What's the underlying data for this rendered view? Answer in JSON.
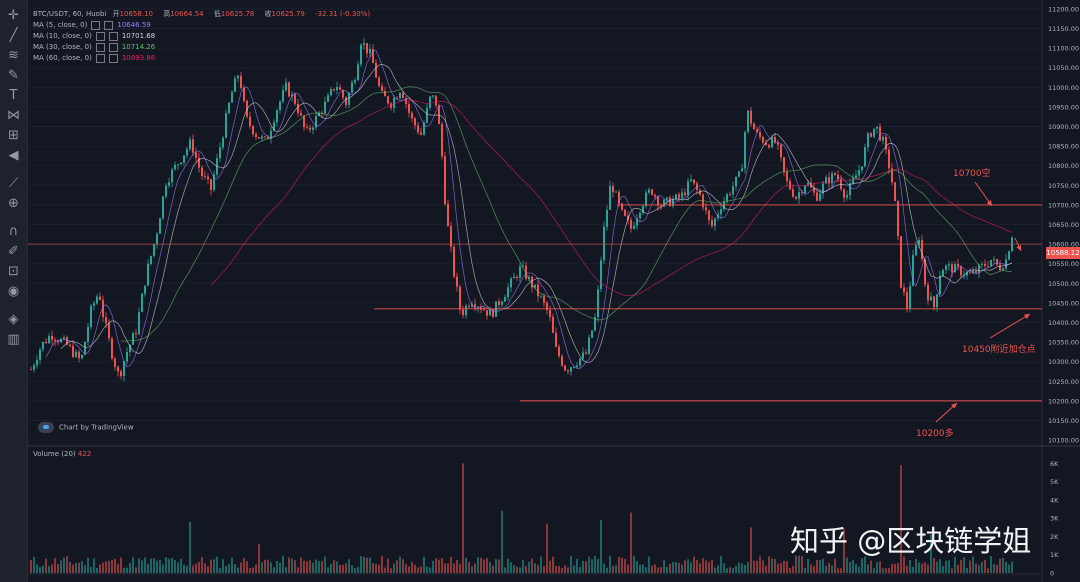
{
  "header": {
    "symbol": "BTC/USDT, 60, Huobi",
    "open_label": "开",
    "open": "10658.10",
    "high_label": "高",
    "high": "10664.54",
    "low_label": "低",
    "low": "10625.78",
    "close_label": "收",
    "close": "10625.79",
    "change": "-32.31 (-0.30%)"
  },
  "indicators": [
    {
      "label": "MA (5, close, 0)",
      "value": "10646.59",
      "color": "#9c7dff"
    },
    {
      "label": "MA (10, close, 0)",
      "value": "10701.68",
      "color": "#d1d4dc"
    },
    {
      "label": "MA (30, close, 0)",
      "value": "10714.26",
      "color": "#66bb6a"
    },
    {
      "label": "MA (60, close, 0)",
      "value": "10893.86",
      "color": "#e91e63"
    }
  ],
  "branding": {
    "tradingview": "Chart by TradingView"
  },
  "annotations": {
    "short_10700": "10700空",
    "add_10450": "10450附近加仓点",
    "long_10200": "10200多"
  },
  "volume_header": {
    "label": "Volume (20)",
    "value": "422"
  },
  "current_price_label": "10588.12",
  "watermark": "知乎 @区块链学姐",
  "colors": {
    "up": "#26a69a",
    "down": "#ef5350",
    "background": "#131722",
    "level_line": "#ef5350"
  },
  "chart_data": {
    "type": "candlestick",
    "ylim": [
      10090,
      11210
    ],
    "yticks": [
      11200,
      11150,
      11100,
      11050,
      11000,
      10950,
      10900,
      10850,
      10800,
      10750,
      10700,
      10650,
      10600,
      10550,
      10500,
      10450,
      10400,
      10350,
      10300,
      10250,
      10200,
      10150,
      10100
    ],
    "levels": [
      {
        "price": 10700,
        "label": "10700空"
      },
      {
        "price": 10600
      },
      {
        "price": 10435,
        "label": "10450附近加仓点"
      },
      {
        "price": 10200,
        "label": "10200多"
      }
    ],
    "close_path": [
      [
        0,
        10280
      ],
      [
        10,
        10340
      ],
      [
        20,
        10370
      ],
      [
        35,
        10345
      ],
      [
        50,
        10300
      ],
      [
        60,
        10430
      ],
      [
        68,
        10480
      ],
      [
        72,
        10420
      ],
      [
        80,
        10330
      ],
      [
        88,
        10260
      ],
      [
        95,
        10320
      ],
      [
        105,
        10380
      ],
      [
        115,
        10520
      ],
      [
        125,
        10620
      ],
      [
        135,
        10760
      ],
      [
        150,
        10820
      ],
      [
        160,
        10860
      ],
      [
        170,
        10780
      ],
      [
        180,
        10740
      ],
      [
        190,
        10860
      ],
      [
        200,
        10980
      ],
      [
        208,
        11040
      ],
      [
        215,
        10920
      ],
      [
        225,
        10880
      ],
      [
        235,
        10860
      ],
      [
        245,
        10940
      ],
      [
        255,
        11000
      ],
      [
        265,
        10960
      ],
      [
        275,
        10880
      ],
      [
        285,
        10920
      ],
      [
        295,
        10960
      ],
      [
        305,
        11010
      ],
      [
        315,
        10960
      ],
      [
        325,
        11040
      ],
      [
        330,
        11120
      ],
      [
        340,
        11080
      ],
      [
        350,
        10980
      ],
      [
        360,
        10960
      ],
      [
        370,
        11000
      ],
      [
        380,
        10920
      ],
      [
        390,
        10880
      ],
      [
        400,
        10980
      ],
      [
        405,
        10960
      ],
      [
        410,
        10860
      ],
      [
        415,
        10680
      ],
      [
        422,
        10540
      ],
      [
        430,
        10420
      ],
      [
        440,
        10460
      ],
      [
        450,
        10440
      ],
      [
        460,
        10420
      ],
      [
        470,
        10460
      ],
      [
        480,
        10500
      ],
      [
        490,
        10540
      ],
      [
        500,
        10500
      ],
      [
        510,
        10460
      ],
      [
        518,
        10420
      ],
      [
        525,
        10330
      ],
      [
        535,
        10280
      ],
      [
        545,
        10300
      ],
      [
        555,
        10320
      ],
      [
        565,
        10420
      ],
      [
        572,
        10620
      ],
      [
        580,
        10760
      ],
      [
        590,
        10680
      ],
      [
        600,
        10640
      ],
      [
        610,
        10700
      ],
      [
        620,
        10740
      ],
      [
        630,
        10700
      ],
      [
        640,
        10710
      ],
      [
        650,
        10720
      ],
      [
        660,
        10760
      ],
      [
        670,
        10720
      ],
      [
        680,
        10640
      ],
      [
        690,
        10700
      ],
      [
        700,
        10740
      ],
      [
        710,
        10780
      ],
      [
        716,
        10940
      ],
      [
        725,
        10880
      ],
      [
        735,
        10860
      ],
      [
        745,
        10860
      ],
      [
        755,
        10760
      ],
      [
        765,
        10720
      ],
      [
        775,
        10760
      ],
      [
        785,
        10720
      ],
      [
        795,
        10760
      ],
      [
        805,
        10780
      ],
      [
        815,
        10720
      ],
      [
        822,
        10760
      ],
      [
        830,
        10800
      ],
      [
        838,
        10880
      ],
      [
        845,
        10900
      ],
      [
        852,
        10860
      ],
      [
        860,
        10780
      ],
      [
        865,
        10680
      ],
      [
        870,
        10500
      ],
      [
        876,
        10440
      ],
      [
        882,
        10560
      ],
      [
        888,
        10620
      ],
      [
        895,
        10480
      ],
      [
        903,
        10440
      ],
      [
        910,
        10540
      ],
      [
        920,
        10540
      ],
      [
        930,
        10530
      ],
      [
        940,
        10520
      ],
      [
        950,
        10540
      ],
      [
        960,
        10560
      ],
      [
        968,
        10540
      ],
      [
        975,
        10560
      ],
      [
        981,
        10625
      ]
    ],
    "volume_ylim": [
      0,
      6400
    ],
    "volume_yticks": [
      "6K",
      "5K",
      "4K",
      "3K",
      "2K",
      "1K",
      "0"
    ],
    "volume_spikes": [
      {
        "pos": 160,
        "value": 2800
      },
      {
        "pos": 228,
        "value": 1600
      },
      {
        "pos": 433,
        "value": 6000
      },
      {
        "pos": 472,
        "value": 3400
      },
      {
        "pos": 517,
        "value": 2700
      },
      {
        "pos": 570,
        "value": 2900
      },
      {
        "pos": 600,
        "value": 3300
      },
      {
        "pos": 720,
        "value": 2500
      },
      {
        "pos": 812,
        "value": 2400
      },
      {
        "pos": 870,
        "value": 5900
      },
      {
        "pos": 900,
        "value": 2100
      }
    ]
  }
}
